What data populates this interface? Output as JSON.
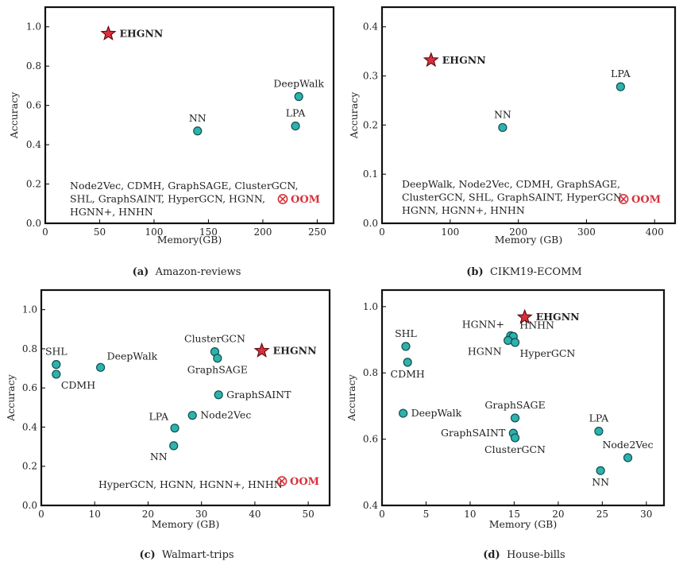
{
  "colors": {
    "point_fill": "#2fb1ad",
    "point_stroke": "#0e4f4d",
    "star_fill": "#d8313c",
    "star_stroke": "#5a0a10",
    "oom": "#d8313c",
    "axis": "#111111"
  },
  "chart_data": [
    {
      "id": "a",
      "type": "scatter",
      "caption_tag": "(a)",
      "caption_text": "Amazon-reviews",
      "xlabel": "Memory(GB)",
      "ylabel": "Accuracy",
      "xlim": [
        0,
        265
      ],
      "ylim": [
        0,
        1.1
      ],
      "xticks": [
        0,
        50,
        100,
        150,
        200,
        250
      ],
      "yticks": [
        0,
        0.2,
        0.4,
        0.6,
        0.8,
        1.0
      ],
      "xtick_labels": [
        "0",
        "50",
        "100",
        "150",
        "200",
        "250"
      ],
      "ytick_labels": [
        "0.0",
        "0.2",
        "0.4",
        "0.6",
        "0.8",
        "1.0"
      ],
      "points": [
        {
          "name": "EHGNN",
          "x": 58,
          "y": 0.965,
          "marker": "star",
          "label": "EHGNN",
          "label_pos": "right",
          "bold": true
        },
        {
          "name": "NN",
          "x": 140,
          "y": 0.47,
          "marker": "circle",
          "label": "NN",
          "label_pos": "top"
        },
        {
          "name": "DeepWalk",
          "x": 233,
          "y": 0.645,
          "marker": "circle",
          "label": "DeepWalk",
          "label_pos": "top"
        },
        {
          "name": "LPA",
          "x": 230,
          "y": 0.495,
          "marker": "circle",
          "label": "LPA",
          "label_pos": "top"
        }
      ],
      "note_lines": [
        "Node2Vec, CDMH, GraphSAGE, ClusterGCN,",
        "SHL, GraphSAINT, HyperGCN, HGNN,",
        "HGNN+, HNHN"
      ],
      "oom_label": "OOM"
    },
    {
      "id": "b",
      "type": "scatter",
      "caption_tag": "(b)",
      "caption_text": "CIKM19-ECOMM",
      "xlabel": "Memory (GB)",
      "ylabel": "Accuracy",
      "xlim": [
        0,
        430
      ],
      "ylim": [
        0,
        0.44
      ],
      "xticks": [
        0,
        100,
        200,
        300,
        400
      ],
      "yticks": [
        0,
        0.1,
        0.2,
        0.3,
        0.4
      ],
      "xtick_labels": [
        "0",
        "100",
        "200",
        "300",
        "400"
      ],
      "ytick_labels": [
        "0.0",
        "0.1",
        "0.2",
        "0.3",
        "0.4"
      ],
      "points": [
        {
          "name": "EHGNN",
          "x": 72,
          "y": 0.332,
          "marker": "star",
          "label": "EHGNN",
          "label_pos": "right",
          "bold": true
        },
        {
          "name": "NN",
          "x": 177,
          "y": 0.195,
          "marker": "circle",
          "label": "NN",
          "label_pos": "top"
        },
        {
          "name": "LPA",
          "x": 350,
          "y": 0.278,
          "marker": "circle",
          "label": "LPA",
          "label_pos": "top"
        }
      ],
      "note_lines": [
        "DeepWalk, Node2Vec, CDMH, GraphSAGE,",
        "ClusterGCN, SHL, GraphSAINT, HyperGCN,",
        "HGNN, HGNN+, HNHN"
      ],
      "oom_label": "OOM"
    },
    {
      "id": "c",
      "type": "scatter",
      "caption_tag": "(c)",
      "caption_text": "Walmart-trips",
      "xlabel": "Memory (GB)",
      "ylabel": "Accuracy",
      "xlim": [
        0,
        54
      ],
      "ylim": [
        0,
        1.1
      ],
      "xticks": [
        0,
        10,
        20,
        30,
        40,
        50
      ],
      "yticks": [
        0,
        0.2,
        0.4,
        0.6,
        0.8,
        1.0
      ],
      "xtick_labels": [
        "0",
        "10",
        "20",
        "30",
        "40",
        "50"
      ],
      "ytick_labels": [
        "0.0",
        "0.2",
        "0.4",
        "0.6",
        "0.8",
        "1.0"
      ],
      "points": [
        {
          "name": "SHL",
          "x": 2.8,
          "y": 0.72,
          "marker": "circle",
          "label": "SHL",
          "label_pos": "top"
        },
        {
          "name": "CDMH",
          "x": 2.8,
          "y": 0.67,
          "marker": "circle",
          "label": "CDMH",
          "label_pos": "bottom-right"
        },
        {
          "name": "DeepWalk",
          "x": 11.1,
          "y": 0.705,
          "marker": "circle",
          "label": "DeepWalk",
          "label_pos": "top-right"
        },
        {
          "name": "ClusterGCN",
          "x": 32.5,
          "y": 0.785,
          "marker": "circle",
          "label": "ClusterGCN",
          "label_pos": "top"
        },
        {
          "name": "GraphSAGE",
          "x": 33.0,
          "y": 0.752,
          "marker": "circle",
          "label": "GraphSAGE",
          "label_pos": "bottom"
        },
        {
          "name": "EHGNN",
          "x": 41.3,
          "y": 0.79,
          "marker": "star",
          "label": "EHGNN",
          "label_pos": "right",
          "bold": true
        },
        {
          "name": "GraphSAINT",
          "x": 33.2,
          "y": 0.565,
          "marker": "circle",
          "label": "GraphSAINT",
          "label_pos": "right"
        },
        {
          "name": "Node2Vec",
          "x": 28.3,
          "y": 0.46,
          "marker": "circle",
          "label": "Node2Vec",
          "label_pos": "right"
        },
        {
          "name": "LPA",
          "x": 25.0,
          "y": 0.395,
          "marker": "circle",
          "label": "LPA",
          "label_pos": "top-left"
        },
        {
          "name": "NN",
          "x": 24.8,
          "y": 0.305,
          "marker": "circle",
          "label": "NN",
          "label_pos": "bottom-left"
        }
      ],
      "note_lines": [
        "HyperGCN, HGNN, HGNN+, HNHN"
      ],
      "oom_label": "OOM"
    },
    {
      "id": "d",
      "type": "scatter",
      "caption_tag": "(d)",
      "caption_text": "House-bills",
      "xlabel": "Memory (GB)",
      "ylabel": "Accuracy",
      "xlim": [
        0,
        32
      ],
      "ylim": [
        0.4,
        1.05
      ],
      "xticks": [
        0,
        5,
        10,
        15,
        20,
        25,
        30
      ],
      "yticks": [
        0.4,
        0.6,
        0.8,
        1.0
      ],
      "xtick_labels": [
        "0",
        "5",
        "10",
        "15",
        "20",
        "25",
        "30"
      ],
      "ytick_labels": [
        "0.4",
        "0.6",
        "0.8",
        "1.0"
      ],
      "points": [
        {
          "name": "EHGNN",
          "x": 16.2,
          "y": 0.968,
          "marker": "star",
          "label": "EHGNN",
          "label_pos": "right",
          "bold": true
        },
        {
          "name": "HGNN+",
          "x": 14.6,
          "y": 0.912,
          "marker": "circle",
          "label": "HGNN+",
          "label_pos": "top-left"
        },
        {
          "name": "HNHN",
          "x": 14.9,
          "y": 0.91,
          "marker": "circle",
          "label": "HNHN",
          "label_pos": "top-right"
        },
        {
          "name": "HGNN",
          "x": 14.3,
          "y": 0.898,
          "marker": "circle",
          "label": "HGNN",
          "label_pos": "bottom-left"
        },
        {
          "name": "HyperGCN",
          "x": 15.1,
          "y": 0.892,
          "marker": "circle",
          "label": "HyperGCN",
          "label_pos": "bottom-right"
        },
        {
          "name": "SHL",
          "x": 2.7,
          "y": 0.88,
          "marker": "circle",
          "label": "SHL",
          "label_pos": "top"
        },
        {
          "name": "CDMH",
          "x": 2.9,
          "y": 0.832,
          "marker": "circle",
          "label": "CDMH",
          "label_pos": "bottom"
        },
        {
          "name": "DeepWalk",
          "x": 2.4,
          "y": 0.678,
          "marker": "circle",
          "label": "DeepWalk",
          "label_pos": "right"
        },
        {
          "name": "GraphSAGE",
          "x": 15.1,
          "y": 0.664,
          "marker": "circle",
          "label": "GraphSAGE",
          "label_pos": "top"
        },
        {
          "name": "GraphSAINT",
          "x": 14.9,
          "y": 0.618,
          "marker": "circle",
          "label": "GraphSAINT",
          "label_pos": "left"
        },
        {
          "name": "ClusterGCN",
          "x": 15.1,
          "y": 0.604,
          "marker": "circle",
          "label": "ClusterGCN",
          "label_pos": "bottom"
        },
        {
          "name": "LPA",
          "x": 24.6,
          "y": 0.624,
          "marker": "circle",
          "label": "LPA",
          "label_pos": "top"
        },
        {
          "name": "Node2Vec",
          "x": 27.9,
          "y": 0.544,
          "marker": "circle",
          "label": "Node2Vec",
          "label_pos": "top"
        },
        {
          "name": "NN",
          "x": 24.8,
          "y": 0.505,
          "marker": "circle",
          "label": "NN",
          "label_pos": "bottom"
        }
      ],
      "note_lines": [],
      "oom_label": ""
    }
  ]
}
